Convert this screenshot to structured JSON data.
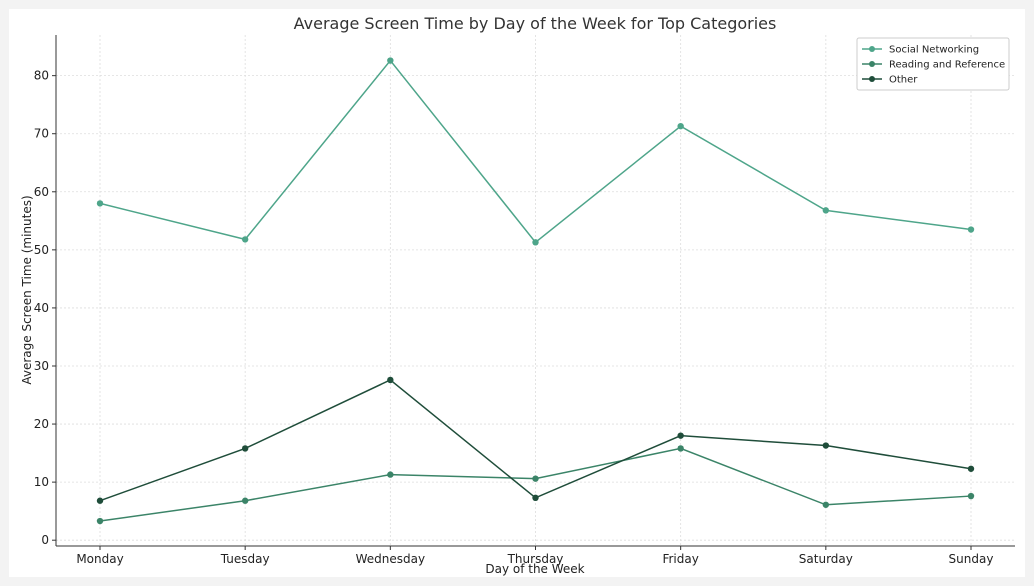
{
  "chart_data": {
    "type": "line",
    "title": "Average Screen Time by Day of the Week for Top Categories",
    "xlabel": "Day of the Week",
    "ylabel": "Average Screen Time (minutes)",
    "categories": [
      "Monday",
      "Tuesday",
      "Wednesday",
      "Thursday",
      "Friday",
      "Saturday",
      "Sunday"
    ],
    "yticks": [
      0,
      10,
      20,
      30,
      40,
      50,
      60,
      70,
      80
    ],
    "ylim": [
      -1,
      87
    ],
    "grid": true,
    "legend_position": "top-right",
    "series": [
      {
        "name": "Social Networking",
        "color": "#4ea58a",
        "values": [
          58.0,
          51.8,
          82.6,
          51.3,
          71.3,
          56.8,
          53.5
        ]
      },
      {
        "name": "Reading and Reference",
        "color": "#3b8468",
        "values": [
          3.3,
          6.8,
          11.3,
          10.6,
          15.8,
          6.1,
          7.6
        ]
      },
      {
        "name": "Other",
        "color": "#1f4d3a",
        "values": [
          6.8,
          15.8,
          27.6,
          7.3,
          18.0,
          16.3,
          12.3
        ]
      }
    ]
  }
}
